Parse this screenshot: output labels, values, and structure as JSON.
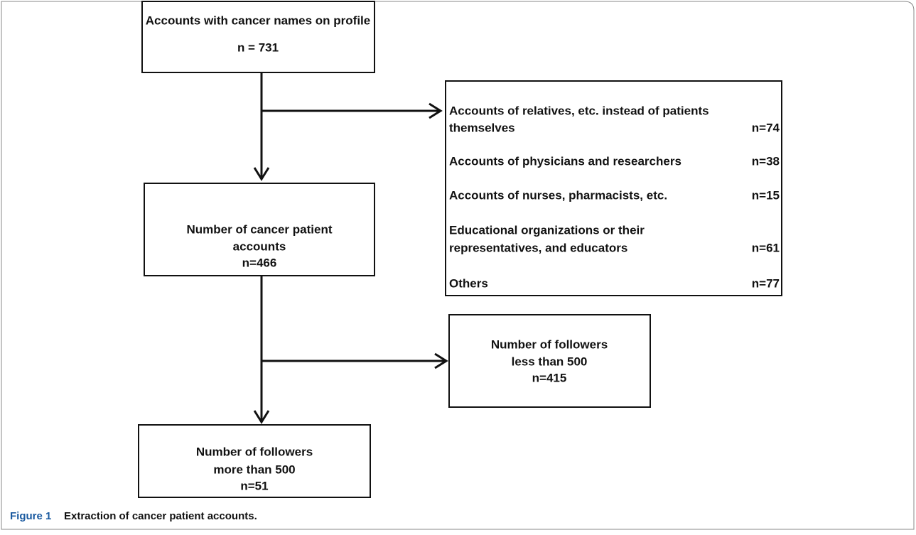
{
  "nodes": [
    {
      "lines": [
        "Accounts with cancer names on profile",
        "n = 731"
      ]
    },
    {
      "lines": [
        "Number of cancer patient",
        "accounts",
        "n=466"
      ]
    },
    {
      "lines": [
        "Number of followers",
        "less than 500",
        "n=415"
      ]
    },
    {
      "lines": [
        "Number of followers",
        "more than 500",
        "n=51"
      ]
    }
  ],
  "exclusions": [
    {
      "lines": [
        "Accounts of relatives, etc. instead of patients",
        "themselves"
      ],
      "n": "n=74"
    },
    {
      "lines": [
        "Accounts of physicians and researchers"
      ],
      "n": "n=38"
    },
    {
      "lines": [
        "Accounts of nurses, pharmacists, etc."
      ],
      "n": "n=15"
    },
    {
      "lines": [
        "Educational organizations or their",
        "representatives, and educators"
      ],
      "n": "n=61"
    },
    {
      "lines": [
        "Others"
      ],
      "n": "n=77"
    }
  ],
  "caption": {
    "label": "Figure 1",
    "text": "Extraction of cancer patient accounts."
  }
}
